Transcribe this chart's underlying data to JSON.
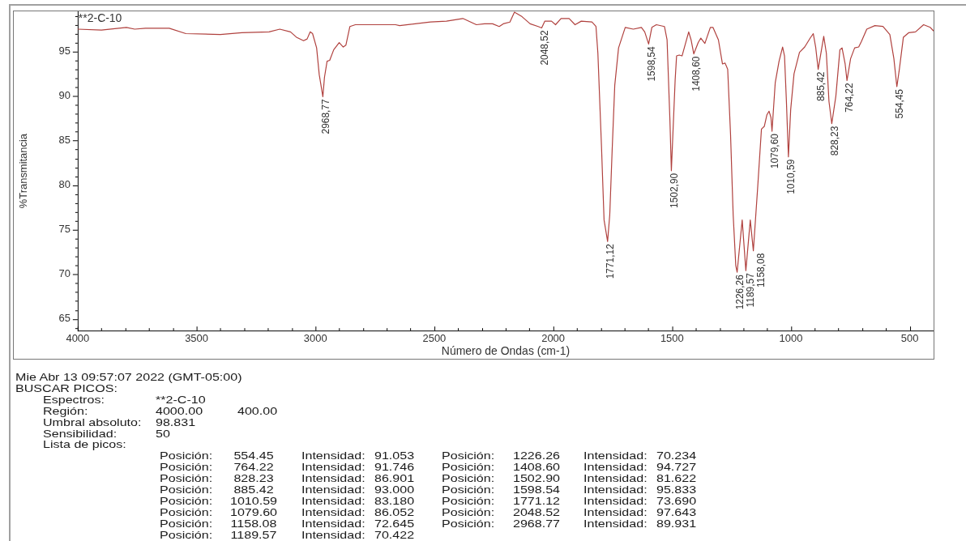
{
  "chart_data": {
    "type": "line",
    "title": "**2-C-10",
    "xlabel": "Número de Ondas (cm-1)",
    "ylabel": "%Transmitancia",
    "x": [
      4000,
      3900,
      3795,
      3760,
      3715,
      3615,
      3545,
      3400,
      3310,
      3195,
      3150,
      3105,
      3080,
      3050,
      3035,
      3022,
      3012,
      2995,
      2984,
      2968.77,
      2962,
      2951,
      2940,
      2923,
      2900,
      2883,
      2872,
      2855,
      2832,
      2663,
      2646,
      2516,
      2449,
      2380,
      2323,
      2289,
      2255,
      2227,
      2210,
      2182,
      2163,
      2131,
      2097,
      2063,
      2048.52,
      2035,
      2007,
      1990,
      1967,
      1933,
      1908,
      1882,
      1837,
      1820,
      1812,
      1797,
      1786,
      1771.12,
      1762,
      1752,
      1741,
      1725,
      1697,
      1663,
      1629,
      1615,
      1598.54,
      1585,
      1566,
      1532,
      1521,
      1509,
      1502.9,
      1487,
      1481,
      1470,
      1458,
      1430,
      1420,
      1408.6,
      1390,
      1379,
      1362,
      1339,
      1328,
      1305,
      1288,
      1277,
      1266,
      1254,
      1243,
      1232,
      1226.26,
      1205,
      1189.57,
      1171,
      1158.08,
      1140,
      1124,
      1112,
      1101,
      1092,
      1084,
      1079.6,
      1066,
      1050,
      1035,
      1027,
      1019,
      1010.59,
      1001,
      987,
      964,
      942,
      919,
      906,
      896,
      885.42,
      862,
      851,
      840,
      828.23,
      811,
      794,
      785,
      772,
      764.22,
      749,
      732,
      715,
      704,
      681,
      647,
      613,
      584,
      567,
      554.45,
      544,
      527,
      505,
      476,
      442,
      414,
      400
    ],
    "series": [
      {
        "color": "#b0413e",
        "values": [
          97.5,
          97.4,
          97.7,
          97.5,
          97.6,
          97.6,
          97.0,
          96.9,
          97.1,
          97.2,
          97.5,
          97.2,
          96.6,
          96.2,
          96.4,
          97.2,
          97.0,
          95.4,
          92.4,
          89.931,
          92.1,
          93.9,
          94.0,
          95.2,
          96.0,
          95.5,
          95.7,
          97.8,
          98.0,
          98.0,
          97.9,
          98.3,
          98.4,
          98.7,
          98.0,
          98.1,
          98.1,
          97.8,
          98.1,
          98.3,
          99.4,
          98.9,
          98.1,
          97.8,
          97.643,
          98.4,
          98.4,
          98.0,
          98.7,
          98.7,
          98.0,
          98.4,
          98.3,
          97.8,
          94.8,
          84.5,
          76.1,
          73.69,
          76.7,
          83.9,
          91.2,
          95.4,
          97.7,
          97.5,
          97.7,
          97.2,
          95.833,
          97.7,
          98.0,
          97.8,
          96.3,
          87.3,
          81.622,
          91.8,
          94.5,
          94.6,
          94.5,
          97.2,
          96.3,
          94.727,
          96.0,
          96.5,
          95.9,
          97.7,
          97.7,
          96.3,
          93.6,
          93.7,
          93.0,
          85.7,
          76.7,
          71.0,
          70.234,
          76.1,
          70.422,
          76.1,
          72.645,
          79.7,
          86.3,
          86.6,
          87.9,
          88.3,
          87.6,
          86.052,
          91.5,
          93.9,
          95.5,
          94.5,
          89.4,
          83.18,
          88.5,
          92.5,
          94.9,
          95.5,
          96.5,
          97.0,
          95.5,
          93.0,
          96.7,
          94.8,
          89.4,
          86.901,
          90.0,
          95.2,
          95.4,
          93.6,
          91.746,
          94.2,
          95.4,
          95.5,
          96.1,
          97.5,
          97.9,
          97.8,
          96.9,
          94.2,
          91.053,
          93.0,
          96.6,
          97.1,
          97.2,
          98.0,
          97.7,
          97.3
        ]
      }
    ],
    "xlim": [
      4000,
      400
    ],
    "xticks": [
      4000,
      {
        "value": 3900,
        "label": null
      },
      {
        "value": 3800,
        "label": null
      },
      {
        "value": 3700,
        "label": null
      },
      {
        "value": 3600,
        "label": null
      },
      3500,
      {
        "value": 3400,
        "label": null
      },
      {
        "value": 3300,
        "label": null
      },
      {
        "value": 3200,
        "label": null
      },
      {
        "value": 3100,
        "label": null
      },
      3000,
      {
        "value": 2900,
        "label": null
      },
      {
        "value": 2800,
        "label": null
      },
      {
        "value": 2700,
        "label": null
      },
      {
        "value": 2600,
        "label": null
      },
      2500,
      {
        "value": 2400,
        "label": null
      },
      {
        "value": 2300,
        "label": null
      },
      {
        "value": 2200,
        "label": null
      },
      {
        "value": 2100,
        "label": null
      },
      2000,
      {
        "value": 1900,
        "label": null
      },
      {
        "value": 1800,
        "label": null
      },
      {
        "value": 1700,
        "label": null
      },
      {
        "value": 1600,
        "label": null
      },
      1500,
      {
        "value": 1400,
        "label": null
      },
      {
        "value": 1300,
        "label": null
      },
      {
        "value": 1200,
        "label": null
      },
      {
        "value": 1100,
        "label": null
      },
      1000,
      {
        "value": 900,
        "label": null
      },
      {
        "value": 800,
        "label": null
      },
      {
        "value": 700,
        "label": null
      },
      {
        "value": 600,
        "label": null
      },
      500
    ],
    "ylim": [
      63.7,
      99.5
    ],
    "yticks": [
      {
        "value": 64,
        "label": null
      },
      65,
      {
        "value": 66,
        "label": null
      },
      {
        "value": 67,
        "label": null
      },
      {
        "value": 68,
        "label": null
      },
      {
        "value": 69,
        "label": null
      },
      70,
      {
        "value": 71,
        "label": null
      },
      {
        "value": 72,
        "label": null
      },
      {
        "value": 73,
        "label": null
      },
      {
        "value": 74,
        "label": null
      },
      75,
      {
        "value": 76,
        "label": null
      },
      {
        "value": 77,
        "label": null
      },
      {
        "value": 78,
        "label": null
      },
      {
        "value": 79,
        "label": null
      },
      80,
      {
        "value": 81,
        "label": null
      },
      {
        "value": 82,
        "label": null
      },
      {
        "value": 83,
        "label": null
      },
      {
        "value": 84,
        "label": null
      },
      85,
      {
        "value": 86,
        "label": null
      },
      {
        "value": 87,
        "label": null
      },
      {
        "value": 88,
        "label": null
      },
      {
        "value": 89,
        "label": null
      },
      90,
      {
        "value": 91,
        "label": null
      },
      {
        "value": 92,
        "label": null
      },
      {
        "value": 93,
        "label": null
      },
      {
        "value": 94,
        "label": null
      },
      95,
      {
        "value": 96,
        "label": null
      },
      {
        "value": 97,
        "label": null
      },
      {
        "value": 98,
        "label": null
      },
      {
        "value": 99,
        "label": null
      }
    ],
    "annotations": [
      {
        "text": "2968,77",
        "x": 2968.77,
        "y": 89.931
      },
      {
        "text": "2048,52",
        "x": 2048.52,
        "y": 97.643
      },
      {
        "text": "1771,12",
        "x": 1771.12,
        "y": 73.69
      },
      {
        "text": "1598,54",
        "x": 1598.54,
        "y": 95.833
      },
      {
        "text": "1502,90",
        "x": 1502.9,
        "y": 81.622
      },
      {
        "text": "1408,60",
        "x": 1408.6,
        "y": 94.727
      },
      {
        "text": "1226,26",
        "x": 1226.26,
        "y": 70.234
      },
      {
        "text": "1189,57",
        "x": 1189.57,
        "y": 70.422
      },
      {
        "text": "1158,08",
        "x": 1158.08,
        "y": 72.645
      },
      {
        "text": "1079,60",
        "x": 1079.6,
        "y": 86.052
      },
      {
        "text": "1010,59",
        "x": 1010.59,
        "y": 83.18
      },
      {
        "text": "885,42",
        "x": 885.42,
        "y": 93.0
      },
      {
        "text": "828,23",
        "x": 828.23,
        "y": 86.901
      },
      {
        "text": "764,22",
        "x": 764.22,
        "y": 91.746
      },
      {
        "text": "554,45",
        "x": 554.45,
        "y": 91.053
      },
      "Mie Abr 13 09:57:07 2022 (GMT-05:00)",
      "BUSCAR PICOS:",
      "\tEspectros:\t**2-C-10",
      "\tRegión:\t4000.00\t400.00",
      "\tUmbral absoluto:\t98.831",
      "\tSensibilidad:\t50",
      "\tLista de picos:",
      "\t\tPosición:\t554.45\tIntensidad:\t91.053\tPosición:\t1226.26\tIntensidad:\t70.234",
      "\t\tPosición:\t764.22\tIntensidad:\t91.746\tPosición:\t1408.60\tIntensidad:\t94.727",
      "\t\tPosición:\t828.23\tIntensidad:\t86.901\tPosición:\t1502.90\tIntensidad:\t81.622",
      "\t\tPosición:\t885.42\tIntensidad:\t93.000\tPosición:\t1598.54\tIntensidad:\t95.833",
      "\t\tPosición:\t1010.59\tIntensidad:\t83.180\tPosición:\t1771.12\tIntensidad:\t73.690",
      "\t\tPosición:\t1079.60\tIntensidad:\t86.052\tPosición:\t2048.52\tIntensidad:\t97.643",
      "\t\tPosición:\t1158.08\tIntensidad:\t72.645\tPosición:\t2968.77\tIntensidad:\t89.931",
      "\t\tPosición:\t1189.57\tIntensidad:\t70.422"
    ]
  }
}
